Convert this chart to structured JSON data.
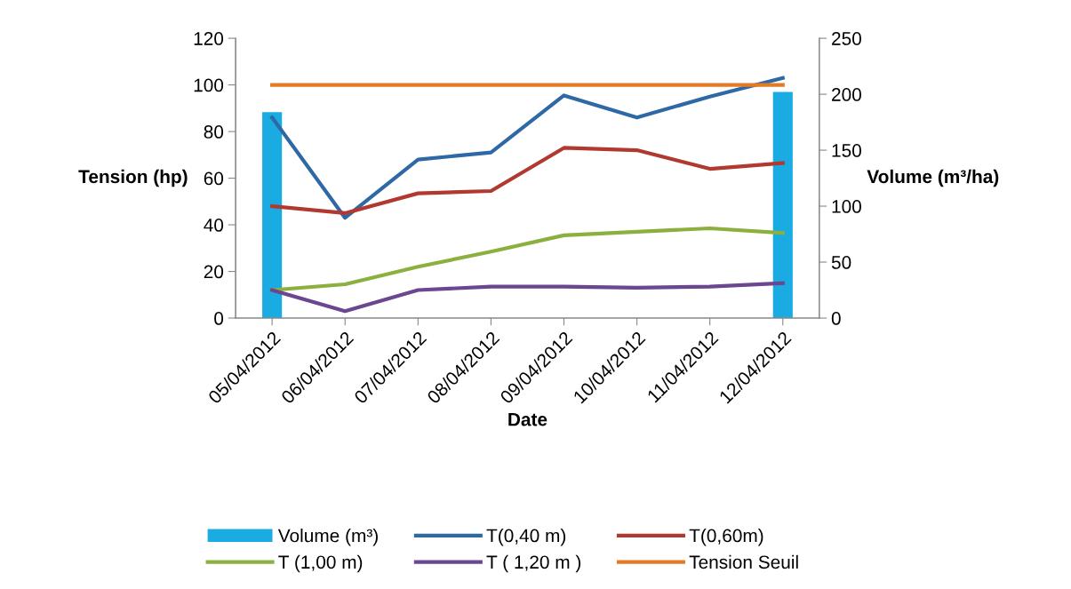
{
  "chart_data": {
    "type": "line",
    "xlabel": "Date",
    "ylabel": "Tension (hp)",
    "y2label": "Volume (m³/ha)",
    "categories": [
      "05/04/2012",
      "06/04/2012",
      "07/04/2012",
      "08/04/2012",
      "09/04/2012",
      "10/04/2012",
      "11/04/2012",
      "12/04/2012"
    ],
    "series": [
      {
        "name": "Volume (m³)",
        "type": "bar",
        "axis": "y2",
        "color": "#1aabe2",
        "values": [
          184,
          null,
          null,
          null,
          null,
          null,
          null,
          202
        ]
      },
      {
        "name": "T(0,40 m)",
        "color": "#2e69a6",
        "values": [
          86,
          43,
          68,
          71,
          95.5,
          86,
          95,
          103
        ]
      },
      {
        "name": "T(0,60m)",
        "color": "#b1392f",
        "values": [
          48,
          45,
          53.5,
          54.5,
          73,
          72,
          64,
          66.5
        ]
      },
      {
        "name": "T (1,00 m)",
        "color": "#8cb03f",
        "values": [
          12,
          14.5,
          22,
          28.5,
          35.5,
          37,
          38.5,
          36.5
        ]
      },
      {
        "name": "T ( 1,20 m )",
        "color": "#6b4691",
        "values": [
          12,
          3,
          12,
          13.5,
          13.5,
          13,
          13.5,
          15
        ]
      },
      {
        "name": "Tension Seuil",
        "color": "#e27b26",
        "values": [
          100,
          100,
          100,
          100,
          100,
          100,
          100,
          100
        ]
      }
    ],
    "ylim": [
      0,
      120
    ],
    "yticks": [
      0,
      20,
      40,
      60,
      80,
      100,
      120
    ],
    "y2lim": [
      0,
      250
    ],
    "y2ticks": [
      0,
      50,
      100,
      150,
      200,
      250
    ],
    "grid": false,
    "legend": "bottom",
    "line_style": "solid",
    "marker": "none"
  }
}
